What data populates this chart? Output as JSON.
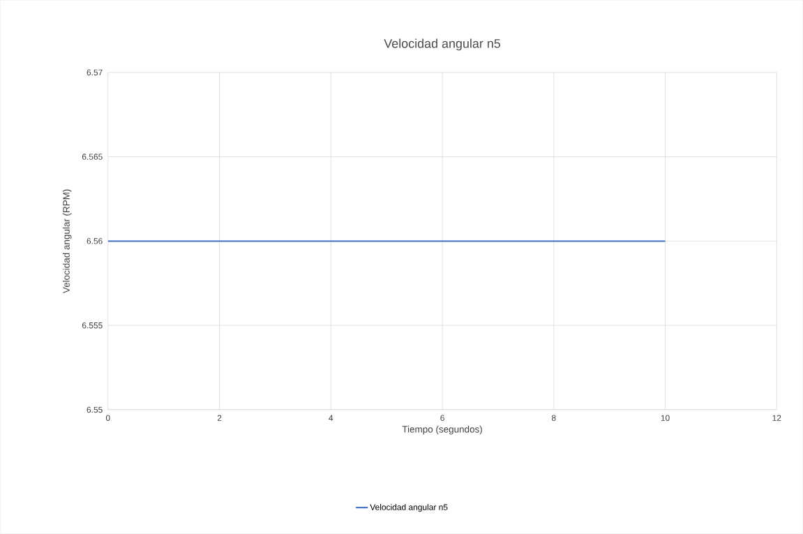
{
  "chart_data": {
    "type": "line",
    "title": "Velocidad angular n5",
    "xlabel": "Tiempo (segundos)",
    "ylabel": "Velocidad angular (RPM)",
    "x": [
      0,
      10
    ],
    "series": [
      {
        "name": "Velocidad angular n5",
        "color": "#4472c4",
        "values": [
          6.56,
          6.56
        ]
      }
    ],
    "xlim": [
      0,
      12
    ],
    "xticks": [
      0,
      2,
      4,
      6,
      8,
      10,
      12
    ],
    "ylim": [
      6.55,
      6.57
    ],
    "yticks": [
      6.55,
      6.555,
      6.56,
      6.565,
      6.57
    ],
    "grid": true,
    "legend": "bottom",
    "marker": "none",
    "line_style": "solid"
  }
}
